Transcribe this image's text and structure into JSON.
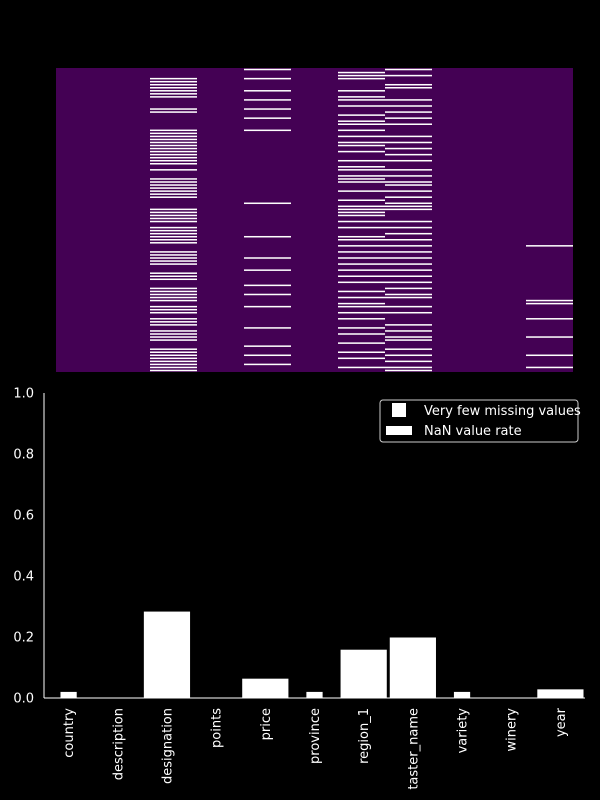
{
  "chart_data": [
    {
      "type": "heatmap",
      "title": "",
      "columns": [
        "country",
        "description",
        "designation",
        "points",
        "price",
        "province",
        "region_1",
        "taster_name",
        "variety",
        "winery",
        "year"
      ],
      "rows_shown": 100,
      "missing_rows": [
        [],
        [],
        [
          3,
          4,
          5,
          6,
          7,
          8,
          9,
          13,
          14,
          20,
          21,
          22,
          23,
          24,
          25,
          26,
          27,
          28,
          29,
          30,
          31,
          33,
          36,
          37,
          38,
          39,
          40,
          41,
          42,
          46,
          47,
          48,
          49,
          50,
          52,
          53,
          54,
          55,
          56,
          57,
          60,
          61,
          62,
          63,
          64,
          67,
          68,
          69,
          72,
          73,
          74,
          75,
          76,
          78,
          79,
          80,
          82,
          83,
          84,
          86,
          87,
          88,
          89,
          92,
          93,
          94,
          95,
          96,
          97,
          98,
          99
        ],
        [],
        [
          0,
          3,
          7,
          10,
          13,
          16,
          20,
          44,
          55,
          62,
          66,
          71,
          74,
          78,
          85,
          91,
          94,
          97
        ],
        [],
        [
          1,
          2,
          3,
          7,
          9,
          10,
          12,
          15,
          17,
          18,
          20,
          22,
          24,
          25,
          27,
          30,
          32,
          33,
          35,
          36,
          37,
          40,
          43,
          45,
          46,
          47,
          48,
          50,
          52,
          55,
          56,
          58,
          60,
          62,
          64,
          66,
          68,
          70,
          73,
          75,
          77,
          78,
          80,
          82,
          85,
          87,
          90,
          93,
          95,
          98
        ],
        [
          0,
          2,
          5,
          6,
          10,
          12,
          14,
          16,
          18,
          22,
          24,
          26,
          28,
          30,
          33,
          35,
          37,
          38,
          40,
          42,
          44,
          45,
          46,
          50,
          52,
          54,
          56,
          58,
          60,
          62,
          64,
          66,
          68,
          70,
          72,
          74,
          75,
          78,
          80,
          84,
          86,
          88,
          89,
          92,
          94,
          96,
          98,
          99
        ],
        [],
        [],
        [
          58,
          76,
          77,
          82,
          88,
          94,
          98
        ]
      ]
    },
    {
      "type": "bar",
      "categories": [
        "country",
        "description",
        "designation",
        "points",
        "price",
        "province",
        "region_1",
        "taster_name",
        "variety",
        "winery",
        "year"
      ],
      "series": [
        {
          "name": "Very few missing values",
          "values": [
            0.02,
            0.0,
            0.0,
            0.0,
            0.0,
            0.02,
            0.0,
            0.0,
            0.02,
            0.0,
            0.005
          ]
        },
        {
          "name": "NaN value rate",
          "values": [
            0.0,
            0.0,
            0.285,
            0.0,
            0.065,
            0.0,
            0.16,
            0.2,
            0.0,
            0.0,
            0.03
          ]
        }
      ],
      "ylim": [
        0,
        1.0
      ],
      "yticks": [
        "0.0",
        "0.2",
        "0.4",
        "0.6",
        "0.8",
        "1.0"
      ],
      "legend": "top-right",
      "colors": {
        "background": "#000000",
        "bar": "#ffffff",
        "heatmap_bg": "#440154",
        "missing": "#ffffff"
      }
    }
  ]
}
